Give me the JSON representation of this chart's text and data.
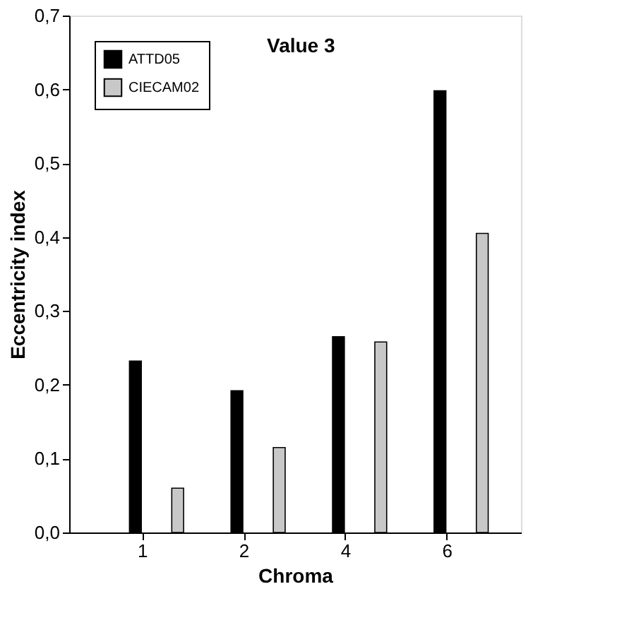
{
  "chart_data": {
    "type": "bar",
    "xlabel": "Chroma",
    "ylabel": "Eccentricity index",
    "categories": [
      "1",
      "2",
      "4",
      "6"
    ],
    "series": [
      {
        "name": "ATTD05",
        "color": "#000000",
        "values": [
          0.232,
          0.192,
          0.265,
          0.598
        ]
      },
      {
        "name": "CIECAM02",
        "color": "#c8c8c8",
        "values": [
          0.06,
          0.115,
          0.258,
          0.405
        ]
      }
    ],
    "ylim": [
      0,
      0.7
    ],
    "yticks": [
      {
        "value": 0,
        "label": "0,0"
      },
      {
        "value": 0.1,
        "label": "0,1"
      },
      {
        "value": 0.2,
        "label": "0,2"
      },
      {
        "value": 0.3,
        "label": "0,3"
      },
      {
        "value": 0.4,
        "label": "0,4"
      },
      {
        "value": 0.5,
        "label": "0,5"
      },
      {
        "value": 0.6,
        "label": "0,6"
      },
      {
        "value": 0.7,
        "label": "0,7"
      }
    ],
    "annotations": [
      "Value 3"
    ],
    "legend": "top left",
    "grid": false
  }
}
